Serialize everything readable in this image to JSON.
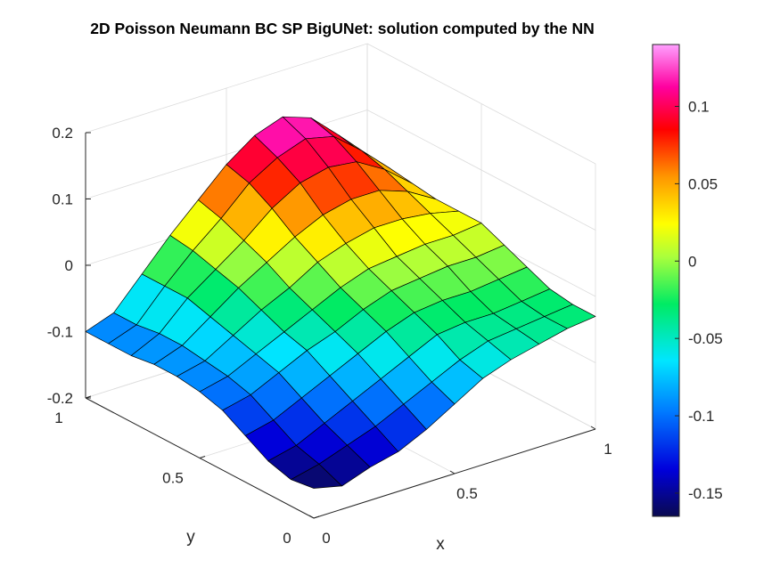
{
  "chart_data": {
    "type": "surface",
    "title": "2D Poisson Neumann BC SP BigUNet: solution computed by the NN",
    "xlabel": "x",
    "ylabel": "y",
    "zlabel": "",
    "xlim": [
      0,
      1
    ],
    "ylim": [
      0,
      1
    ],
    "zlim": [
      -0.2,
      0.2
    ],
    "x_ticks": [
      "0",
      "0.5",
      "1"
    ],
    "y_ticks": [
      "0",
      "0.5",
      "1"
    ],
    "z_ticks": [
      "-0.2",
      "-0.1",
      "0",
      "0.1",
      "0.2"
    ],
    "colorbar": {
      "limits": [
        -0.165,
        0.14
      ],
      "ticks": [
        "-0.15",
        "-0.1",
        "-0.05",
        "0",
        "0.05",
        "0.1"
      ],
      "tick_values": [
        -0.15,
        -0.1,
        -0.05,
        0,
        0.05,
        0.1
      ],
      "colormap": "hsv"
    },
    "grid": true,
    "x": [
      0,
      0.1,
      0.2,
      0.3,
      0.4,
      0.5,
      0.6,
      0.7,
      0.8,
      0.9,
      1.0
    ],
    "y": [
      0,
      0.1,
      0.2,
      0.3,
      0.4,
      0.5,
      0.6,
      0.7,
      0.8,
      0.9,
      1.0
    ],
    "z": [
      [
        -0.155,
        -0.165,
        -0.15,
        -0.14,
        -0.12,
        -0.095,
        -0.07,
        -0.055,
        -0.045,
        -0.035,
        -0.03
      ],
      [
        -0.16,
        -0.15,
        -0.135,
        -0.12,
        -0.1,
        -0.08,
        -0.06,
        -0.045,
        -0.04,
        -0.035,
        -0.03
      ],
      [
        -0.15,
        -0.14,
        -0.12,
        -0.1,
        -0.08,
        -0.06,
        -0.04,
        -0.035,
        -0.035,
        -0.03,
        -0.025
      ],
      [
        -0.13,
        -0.12,
        -0.1,
        -0.08,
        -0.06,
        -0.04,
        -0.025,
        -0.02,
        -0.02,
        -0.015,
        -0.01
      ],
      [
        -0.11,
        -0.1,
        -0.08,
        -0.06,
        -0.045,
        -0.025,
        -0.01,
        -0.005,
        0.0,
        0.0,
        0.005
      ],
      [
        -0.1,
        -0.09,
        -0.07,
        -0.05,
        -0.03,
        -0.01,
        0.005,
        0.01,
        0.015,
        0.015,
        0.02
      ],
      [
        -0.095,
        -0.085,
        -0.06,
        -0.035,
        -0.015,
        0.01,
        0.025,
        0.035,
        0.035,
        0.03,
        0.02
      ],
      [
        -0.095,
        -0.08,
        -0.05,
        -0.02,
        0.005,
        0.03,
        0.05,
        0.06,
        0.06,
        0.045,
        0.02
      ],
      [
        -0.1,
        -0.08,
        -0.04,
        -0.01,
        0.02,
        0.055,
        0.08,
        0.09,
        0.085,
        0.06,
        0.025
      ],
      [
        -0.1,
        -0.085,
        -0.04,
        0.0,
        0.035,
        0.075,
        0.1,
        0.115,
        0.105,
        0.07,
        0.03
      ],
      [
        -0.1,
        -0.085,
        -0.04,
        0.005,
        0.045,
        0.085,
        0.115,
        0.13,
        0.115,
        0.075,
        0.03
      ]
    ]
  }
}
